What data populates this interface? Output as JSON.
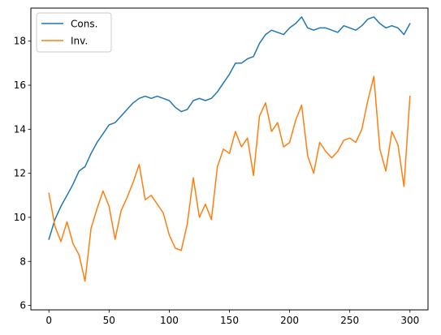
{
  "chart_data": {
    "type": "line",
    "title": "",
    "xlabel": "",
    "ylabel": "",
    "xlim": [
      -15,
      315
    ],
    "ylim": [
      5.8,
      19.5
    ],
    "xticks": [
      0,
      50,
      100,
      150,
      200,
      250,
      300
    ],
    "yticks": [
      6,
      8,
      10,
      12,
      14,
      16,
      18
    ],
    "grid": false,
    "legend": "top-left",
    "series": [
      {
        "name": "Cons.",
        "color": "#1f77b4",
        "x": [
          0,
          5,
          10,
          15,
          20,
          25,
          30,
          35,
          40,
          45,
          50,
          55,
          60,
          65,
          70,
          75,
          80,
          85,
          90,
          95,
          100,
          105,
          110,
          115,
          120,
          125,
          130,
          135,
          140,
          145,
          150,
          155,
          160,
          165,
          170,
          175,
          180,
          185,
          190,
          195,
          200,
          205,
          210,
          215,
          220,
          225,
          230,
          235,
          240,
          245,
          250,
          255,
          260,
          265,
          270,
          275,
          280,
          285,
          290,
          295,
          300
        ],
        "y": [
          9.0,
          9.9,
          10.5,
          11.0,
          11.5,
          12.1,
          12.3,
          12.9,
          13.4,
          13.8,
          14.2,
          14.3,
          14.6,
          14.9,
          15.2,
          15.4,
          15.5,
          15.4,
          15.5,
          15.4,
          15.3,
          15.0,
          14.8,
          14.9,
          15.3,
          15.4,
          15.3,
          15.4,
          15.7,
          16.1,
          16.5,
          17.0,
          17.0,
          17.2,
          17.3,
          17.9,
          18.3,
          18.5,
          18.4,
          18.3,
          18.6,
          18.8,
          19.1,
          18.6,
          18.5,
          18.6,
          18.6,
          18.5,
          18.4,
          18.7,
          18.6,
          18.5,
          18.7,
          19.0,
          19.1,
          18.8,
          18.6,
          18.7,
          18.6,
          18.3,
          18.8
        ]
      },
      {
        "name": "Inv.",
        "color": "#ff7f0e",
        "x": [
          0,
          5,
          10,
          15,
          20,
          25,
          30,
          35,
          40,
          45,
          50,
          55,
          60,
          65,
          70,
          75,
          80,
          85,
          90,
          95,
          100,
          105,
          110,
          115,
          120,
          125,
          130,
          135,
          140,
          145,
          150,
          155,
          160,
          165,
          170,
          175,
          180,
          185,
          190,
          195,
          200,
          205,
          210,
          215,
          220,
          225,
          230,
          235,
          240,
          245,
          250,
          255,
          260,
          265,
          270,
          275,
          280,
          285,
          290,
          295,
          300
        ],
        "y": [
          11.1,
          9.6,
          8.9,
          9.8,
          8.8,
          8.3,
          7.1,
          9.5,
          10.4,
          11.2,
          10.5,
          9.0,
          10.3,
          10.9,
          11.6,
          12.4,
          10.8,
          11.0,
          10.6,
          10.2,
          9.2,
          8.6,
          8.5,
          9.7,
          11.8,
          10.0,
          10.6,
          9.9,
          12.3,
          13.1,
          12.9,
          13.9,
          13.2,
          13.6,
          11.9,
          14.6,
          15.2,
          13.9,
          14.3,
          13.2,
          13.4,
          14.4,
          15.1,
          12.8,
          12.0,
          13.4,
          13.0,
          12.7,
          13.0,
          13.5,
          13.6,
          13.4,
          14.0,
          15.3,
          16.4,
          13.1,
          12.1,
          13.9,
          13.3,
          11.4,
          15.5
        ]
      }
    ]
  }
}
